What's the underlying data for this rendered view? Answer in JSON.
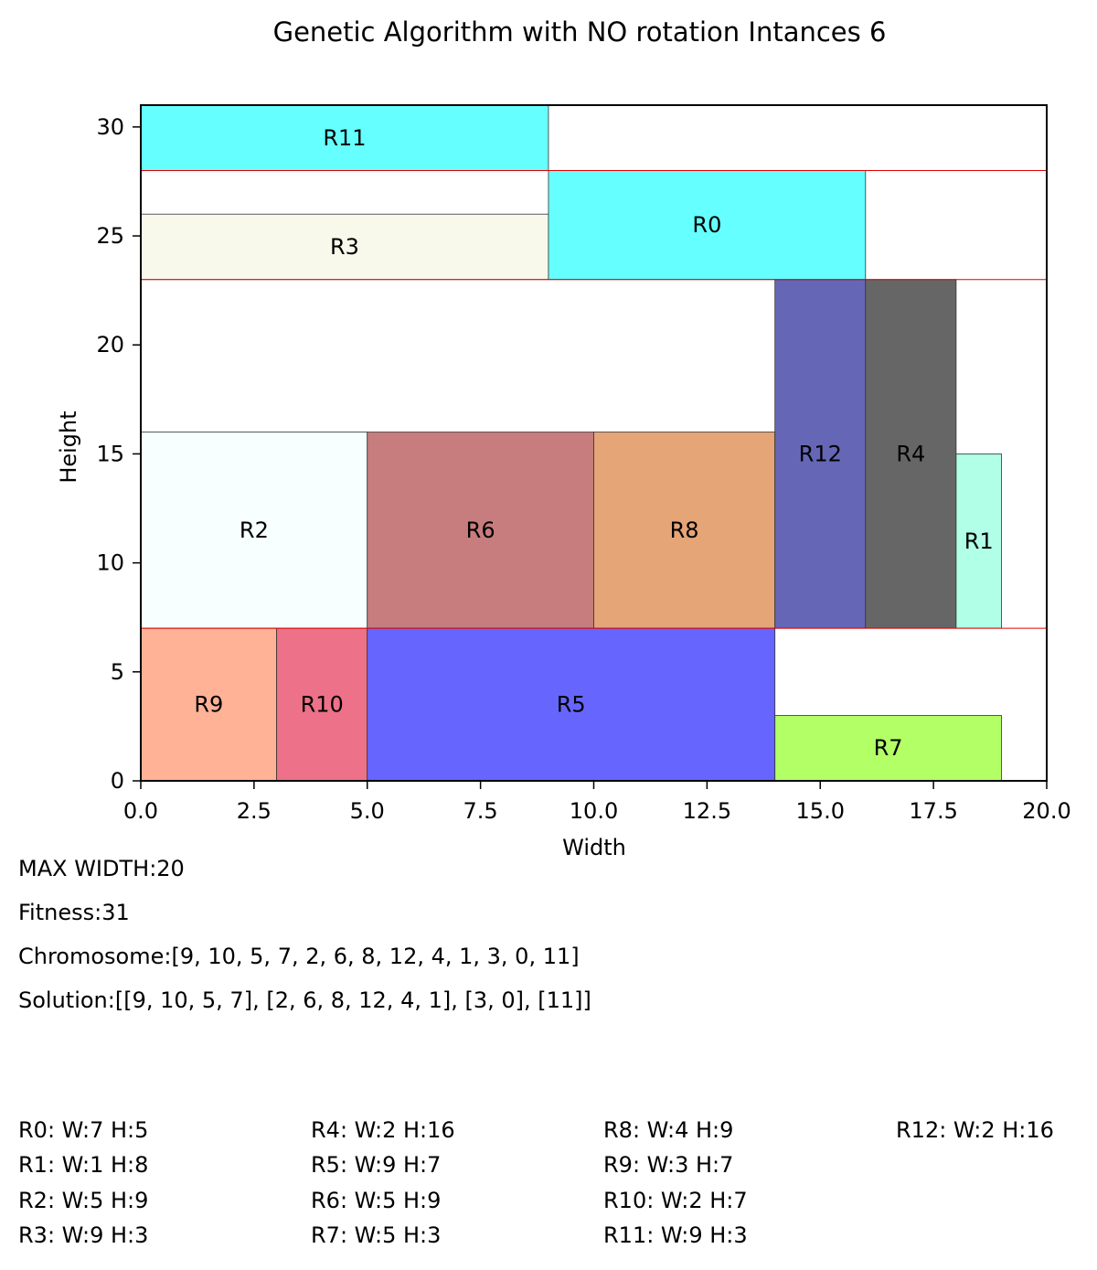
{
  "chart_data": {
    "type": "rectangle-packing",
    "title": "Genetic Algorithm with NO rotation Intances 6",
    "xlabel": "Width",
    "ylabel": "Height",
    "xlim": [
      0,
      20
    ],
    "ylim": [
      0,
      31
    ],
    "x_ticks": [
      "0.0",
      "2.5",
      "5.0",
      "7.5",
      "10.0",
      "12.5",
      "15.0",
      "17.5",
      "20.0"
    ],
    "y_ticks": [
      "0",
      "5",
      "10",
      "15",
      "20",
      "25",
      "30"
    ],
    "level_lines": [
      7,
      23,
      28
    ],
    "level_line_color": "#dd0000",
    "rectangles": [
      {
        "label": "R9",
        "x": 0,
        "y": 0,
        "w": 3,
        "h": 7,
        "color": "#ffb296"
      },
      {
        "label": "R10",
        "x": 3,
        "y": 0,
        "w": 2,
        "h": 7,
        "color": "#ed7188"
      },
      {
        "label": "R5",
        "x": 5,
        "y": 0,
        "w": 9,
        "h": 7,
        "color": "#6666ff"
      },
      {
        "label": "R7",
        "x": 14,
        "y": 0,
        "w": 5,
        "h": 3,
        "color": "#b3ff66"
      },
      {
        "label": "R2",
        "x": 0,
        "y": 7,
        "w": 5,
        "h": 9,
        "color": "#f7ffff"
      },
      {
        "label": "R6",
        "x": 5,
        "y": 7,
        "w": 5,
        "h": 9,
        "color": "#c77d7e"
      },
      {
        "label": "R8",
        "x": 10,
        "y": 7,
        "w": 4,
        "h": 9,
        "color": "#e5a577"
      },
      {
        "label": "R12",
        "x": 14,
        "y": 7,
        "w": 2,
        "h": 16,
        "color": "#6666b6"
      },
      {
        "label": "R4",
        "x": 16,
        "y": 7,
        "w": 2,
        "h": 16,
        "color": "#666666"
      },
      {
        "label": "R1",
        "x": 18,
        "y": 7,
        "w": 1,
        "h": 8,
        "color": "#b0ffe6"
      },
      {
        "label": "R3",
        "x": 0,
        "y": 23,
        "w": 9,
        "h": 3,
        "color": "#f8f8eb"
      },
      {
        "label": "R0",
        "x": 9,
        "y": 23,
        "w": 7,
        "h": 5,
        "color": "#66ffff"
      },
      {
        "label": "R11",
        "x": 0,
        "y": 28,
        "w": 9,
        "h": 3,
        "color": "#66ffff"
      }
    ]
  },
  "info": {
    "max_width": "MAX WIDTH:20",
    "fitness": "Fitness:31",
    "chromosome": "Chromosome:[9, 10, 5, 7, 2, 6, 8, 12, 4, 1, 3, 0, 11]",
    "solution": "Solution:[[9, 10, 5, 7], [2, 6, 8, 12, 4, 1], [3, 0], [11]]"
  },
  "dimensions": [
    "R0: W:7 H:5",
    "R1: W:1 H:8",
    "R2: W:5 H:9",
    "R3: W:9 H:3",
    "R4: W:2 H:16",
    "R5: W:9 H:7",
    "R6: W:5 H:9",
    "R7: W:5 H:3",
    "R8: W:4 H:9",
    "R9: W:3 H:7",
    "R10: W:2 H:7",
    "R11: W:9 H:3",
    "R12: W:2 H:16"
  ]
}
